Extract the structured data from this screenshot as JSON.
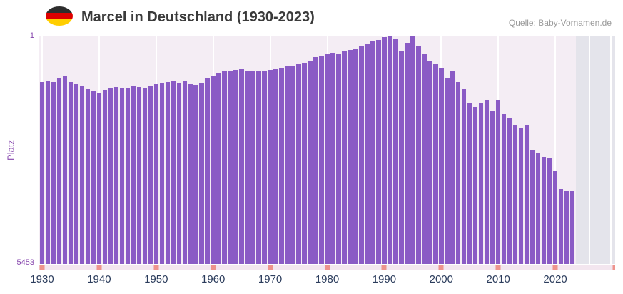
{
  "header": {
    "title": "Marcel in Deutschland (1930-2023)",
    "source": "Quelle: Baby-Vornamen.de",
    "flag_icon": "german-flag",
    "flag_colors": [
      "#2d2d2d",
      "#dd0000",
      "#ffce00"
    ]
  },
  "chart_data": {
    "type": "bar",
    "title": "Marcel in Deutschland (1930-2023)",
    "xlabel": "",
    "ylabel": "Platz",
    "y_axis": {
      "top_label": "1",
      "bottom_label": "5453",
      "min": 1,
      "max": 5453,
      "inverted": true
    },
    "x_ticks": [
      1930,
      1940,
      1950,
      1960,
      1970,
      1980,
      1990,
      2000,
      2010,
      2020
    ],
    "grid": "vertical-white-decade-lines",
    "legend_position": "none",
    "years": [
      1930,
      1931,
      1932,
      1933,
      1934,
      1935,
      1936,
      1937,
      1938,
      1939,
      1940,
      1941,
      1942,
      1943,
      1944,
      1945,
      1946,
      1947,
      1948,
      1949,
      1950,
      1951,
      1952,
      1953,
      1954,
      1955,
      1956,
      1957,
      1958,
      1959,
      1960,
      1961,
      1962,
      1963,
      1964,
      1965,
      1966,
      1967,
      1968,
      1969,
      1970,
      1971,
      1972,
      1973,
      1974,
      1975,
      1976,
      1977,
      1978,
      1979,
      1980,
      1981,
      1982,
      1983,
      1984,
      1985,
      1986,
      1987,
      1988,
      1989,
      1990,
      1991,
      1992,
      1993,
      1994,
      1995,
      1996,
      1997,
      1998,
      1999,
      2000,
      2001,
      2002,
      2003,
      2004,
      2005,
      2006,
      2007,
      2008,
      2009,
      2010,
      2011,
      2012,
      2013,
      2014,
      2015,
      2016,
      2017,
      2018,
      2019,
      2020,
      2021,
      2022,
      2023
    ],
    "values": [
      1110,
      1070,
      1100,
      1030,
      960,
      1110,
      1160,
      1200,
      1280,
      1330,
      1360,
      1300,
      1240,
      1230,
      1270,
      1240,
      1210,
      1230,
      1270,
      1210,
      1160,
      1140,
      1110,
      1090,
      1120,
      1090,
      1160,
      1180,
      1130,
      1020,
      950,
      890,
      860,
      840,
      820,
      800,
      840,
      860,
      860,
      840,
      820,
      800,
      770,
      730,
      715,
      680,
      650,
      600,
      510,
      480,
      430,
      410,
      440,
      375,
      340,
      310,
      240,
      205,
      140,
      100,
      35,
      10,
      90,
      375,
      170,
      5,
      260,
      430,
      600,
      680,
      770,
      1020,
      860,
      1110,
      1280,
      1620,
      1700,
      1620,
      1530,
      1790,
      1530,
      1880,
      1960,
      2130,
      2220,
      2130,
      2730,
      2810,
      2900,
      2930,
      3240,
      3670,
      3720,
      3720
    ],
    "colors": {
      "bar": "#8a5bc5",
      "plot_bg": "#f4edf4",
      "no_data_region": "#e4e4eb",
      "axis_tick": "#ee938d",
      "y_label_text": "#8646ad",
      "x_label_text": "#2b3c5c",
      "title_text": "#3a3a3a",
      "source_text": "#9a9a9a"
    }
  }
}
